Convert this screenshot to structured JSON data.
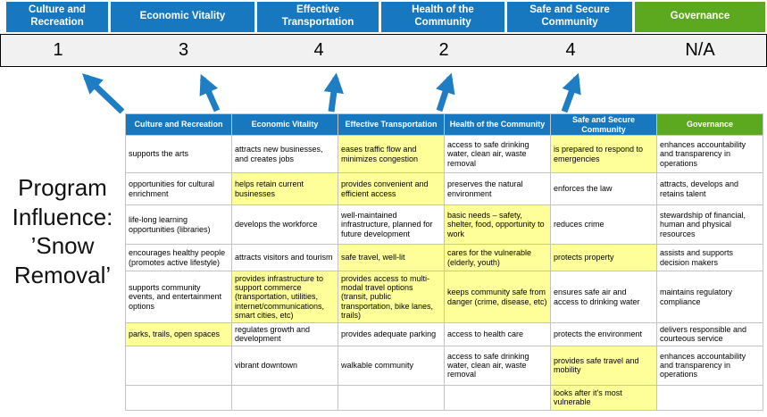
{
  "colors": {
    "header_blue": "#1878BF",
    "header_green": "#5CA81F",
    "highlight_yellow": "#FFFF99",
    "score_bg": "#F1F1F1",
    "arrow_blue": "#1F7EC3"
  },
  "program": {
    "title": "Program Influence: ’Snow Removal’"
  },
  "scoreboard": {
    "columns": [
      {
        "label": "Culture and Recreation",
        "score": "1",
        "color": "blue"
      },
      {
        "label": "Economic Vitality",
        "score": "3",
        "color": "blue"
      },
      {
        "label": "Effective Transportation",
        "score": "4",
        "color": "blue"
      },
      {
        "label": "Health of the Community",
        "score": "2",
        "color": "blue"
      },
      {
        "label": "Safe and Secure Community",
        "score": "4",
        "color": "blue"
      },
      {
        "label": "Governance",
        "score": "N/A",
        "color": "green"
      }
    ]
  },
  "matrix": {
    "headers": [
      {
        "label": "Culture and Recreation",
        "color": "blue"
      },
      {
        "label": "Economic Vitality",
        "color": "blue"
      },
      {
        "label": "Effective Transportation",
        "color": "blue"
      },
      {
        "label": "Health of the Community",
        "color": "blue"
      },
      {
        "label": "Safe and Secure Community",
        "color": "blue"
      },
      {
        "label": "Governance",
        "color": "green"
      }
    ],
    "rows": [
      [
        {
          "text": "supports the arts",
          "highlight": false
        },
        {
          "text": "attracts new businesses, and creates jobs",
          "highlight": false
        },
        {
          "text": "eases traffic flow and minimizes congestion",
          "highlight": true
        },
        {
          "text": "access to safe drinking water, clean air, waste removal",
          "highlight": false
        },
        {
          "text": "is prepared to respond to emergencies",
          "highlight": true
        },
        {
          "text": "enhances accountability and transparency in operations",
          "highlight": false
        }
      ],
      [
        {
          "text": "opportunities for cultural enrichment",
          "highlight": false
        },
        {
          "text": "helps retain current businesses",
          "highlight": true
        },
        {
          "text": "provides convenient and efficient access",
          "highlight": true
        },
        {
          "text": "preserves the natural environment",
          "highlight": false
        },
        {
          "text": "enforces the law",
          "highlight": false
        },
        {
          "text": "attracts, develops and retains talent",
          "highlight": false
        }
      ],
      [
        {
          "text": "life-long learning opportunities (libraries)",
          "highlight": false
        },
        {
          "text": "develops the workforce",
          "highlight": false
        },
        {
          "text": "well-maintained infrastructure, planned for future development",
          "highlight": false
        },
        {
          "text": "basic needs – safety, shelter, food, opportunity to work",
          "highlight": true
        },
        {
          "text": "reduces crime",
          "highlight": false
        },
        {
          "text": "stewardship of financial, human and physical resources",
          "highlight": false
        }
      ],
      [
        {
          "text": "encourages healthy people (promotes active lifestyle)",
          "highlight": false
        },
        {
          "text": "attracts visitors and tourism",
          "highlight": false
        },
        {
          "text": "safe travel, well-lit",
          "highlight": true
        },
        {
          "text": "cares for the vulnerable (elderly, youth)",
          "highlight": true
        },
        {
          "text": "protects property",
          "highlight": true
        },
        {
          "text": "assists and supports decision makers",
          "highlight": false
        }
      ],
      [
        {
          "text": "supports community events, and entertainment options",
          "highlight": false
        },
        {
          "text": "provides infrastructure to support commerce (transportation, utilities, internet/communications, smart cities, etc)",
          "highlight": true
        },
        {
          "text": "provides access to multi-modal travel options (transit, public transportation, bike lanes, trails)",
          "highlight": true
        },
        {
          "text": "keeps community safe from danger (crime, disease, etc)",
          "highlight": true
        },
        {
          "text": "ensures safe air and access to drinking water",
          "highlight": false
        },
        {
          "text": "maintains regulatory compliance",
          "highlight": false
        }
      ],
      [
        {
          "text": "parks, trails, open spaces",
          "highlight": true
        },
        {
          "text": "regulates growth and development",
          "highlight": false
        },
        {
          "text": "provides adequate parking",
          "highlight": false
        },
        {
          "text": "access to health care",
          "highlight": false
        },
        {
          "text": "protects the environment",
          "highlight": false
        },
        {
          "text": "delivers responsible and courteous service",
          "highlight": false
        }
      ],
      [
        {
          "text": "",
          "highlight": false
        },
        {
          "text": "vibrant downtown",
          "highlight": false
        },
        {
          "text": "walkable community",
          "highlight": false
        },
        {
          "text": "access to safe drinking water, clean air, waste removal",
          "highlight": false
        },
        {
          "text": "provides safe travel and mobility",
          "highlight": true
        },
        {
          "text": "enhances accountability and transparency in operations",
          "highlight": false
        }
      ],
      [
        {
          "text": "",
          "highlight": false
        },
        {
          "text": "",
          "highlight": false
        },
        {
          "text": "",
          "highlight": false
        },
        {
          "text": "",
          "highlight": false
        },
        {
          "text": "looks after it's most vulnerable",
          "highlight": true
        },
        {
          "text": "",
          "highlight": false
        }
      ]
    ]
  }
}
